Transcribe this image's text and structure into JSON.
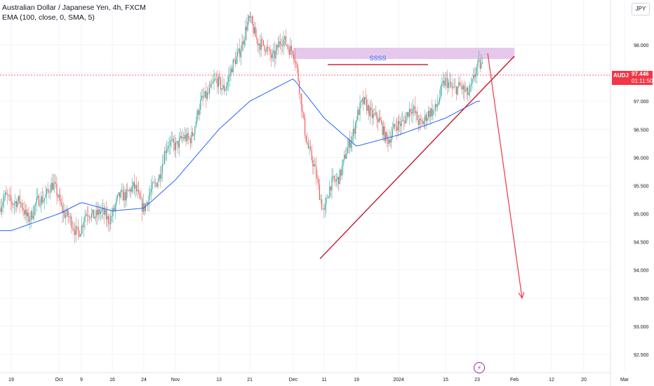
{
  "legend": {
    "title": "Australian Dollar / Japanese Yen, 4h, FXCM",
    "indicator": "EMA (100, close, 0, SMA, 5)"
  },
  "currency_button": "JPY",
  "price_badge": {
    "symbol": "AUDJPY",
    "price": "97.446",
    "countdown": "01:11:50"
  },
  "annotation_text": "SSSS",
  "icons": {
    "event": "lightning-bolt-icon"
  },
  "colors": {
    "up": "#26a69a",
    "down": "#ef5350",
    "ema": "#2962ff",
    "trendline": "#c2182b",
    "zone": "#e1bee7",
    "arrow": "#f23645",
    "ssss_text": "#2962ff"
  },
  "chart_data": {
    "type": "candlestick",
    "title": "Australian Dollar / Japanese Yen, 4h, FXCM",
    "y_axis": {
      "ticks": [
        "98.000",
        "97.500",
        "97.000",
        "96.500",
        "96.000",
        "95.500",
        "95.000",
        "94.500",
        "94.000",
        "93.500",
        "93.000",
        "92.500"
      ],
      "min": 92.3,
      "max": 98.8
    },
    "x_axis": {
      "ticks": [
        "19",
        "Oct",
        "9",
        "16",
        "24",
        "Nov",
        "13",
        "21",
        "Dec",
        "11",
        "19",
        "2024",
        "15",
        "23",
        "Feb",
        "12",
        "20",
        "Mar"
      ]
    },
    "ema_key_points": [
      [
        "19",
        94.7
      ],
      [
        "Oct",
        95.0
      ],
      [
        "9",
        95.2
      ],
      [
        "16",
        95.05
      ],
      [
        "24",
        95.1
      ],
      [
        "Nov",
        95.6
      ],
      [
        "13",
        96.5
      ],
      [
        "21",
        97.0
      ],
      [
        "Dec",
        97.4
      ],
      [
        "11",
        96.7
      ],
      [
        "19",
        96.2
      ],
      [
        "2024",
        96.4
      ],
      [
        "15",
        96.7
      ],
      [
        "23",
        97.0
      ]
    ],
    "candle_envelope": [
      [
        "19",
        95.1
      ],
      [
        "Oct",
        95.3
      ],
      [
        "9",
        94.7
      ],
      [
        "16",
        95.2
      ],
      [
        "24",
        95.3
      ],
      [
        "Nov",
        96.2
      ],
      [
        "13",
        97.3
      ],
      [
        "21",
        98.2
      ],
      [
        "Dec",
        97.8
      ],
      [
        "11",
        94.9
      ],
      [
        "19",
        96.8
      ],
      [
        "2024",
        96.5
      ],
      [
        "15",
        97.1
      ],
      [
        "23",
        97.5
      ]
    ],
    "last_price": 97.446,
    "annotations": {
      "resistance_zone": {
        "from": "Dec",
        "to": "Feb",
        "y_low": 97.75,
        "y_high": 97.95
      },
      "horizontal_line": {
        "from": "11",
        "to": "15",
        "y": 97.65
      },
      "ascending_trendline": {
        "from": [
          "11",
          94.2
        ],
        "to": [
          "Feb",
          97.8
        ]
      },
      "projection_arrow": {
        "from": [
          "23",
          97.85
        ],
        "to": [
          "12",
          93.5
        ]
      }
    },
    "grid": true,
    "legend_position": "top-left"
  }
}
